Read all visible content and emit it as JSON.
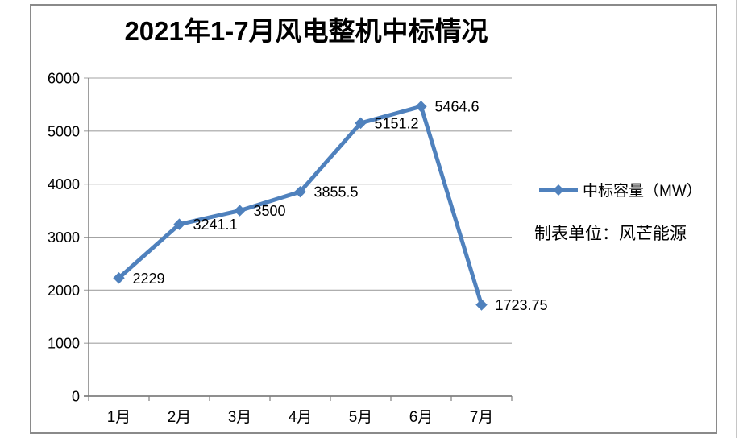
{
  "page": {
    "background_color": "#ffffff",
    "frame_border_color": "#8a8a8a"
  },
  "chart_data": {
    "type": "line",
    "title": "2021年1-7月风电整机中标情况",
    "categories": [
      "1月",
      "2月",
      "3月",
      "4月",
      "5月",
      "6月",
      "7月"
    ],
    "series": [
      {
        "name": "中标容量（MW）",
        "values": [
          2229,
          3241.1,
          3500,
          3855.5,
          5151.2,
          5464.6,
          1723.75
        ],
        "labels": [
          "2229",
          "3241.1",
          "3500",
          "3855.5",
          "5151.2",
          "5464.6",
          "1723.75"
        ],
        "color": "#4F81BD",
        "marker": "diamond"
      }
    ],
    "ylim": [
      0,
      6000
    ],
    "ytick_step": 1000,
    "yticks": [
      "0",
      "1000",
      "2000",
      "3000",
      "4000",
      "5000",
      "6000"
    ],
    "grid": true,
    "legend_position": "right",
    "annotation": "制表单位：风芒能源",
    "axis_color": "#7f7f7f",
    "gridline_color": "#a3a3a3",
    "text_color": "#000000"
  }
}
